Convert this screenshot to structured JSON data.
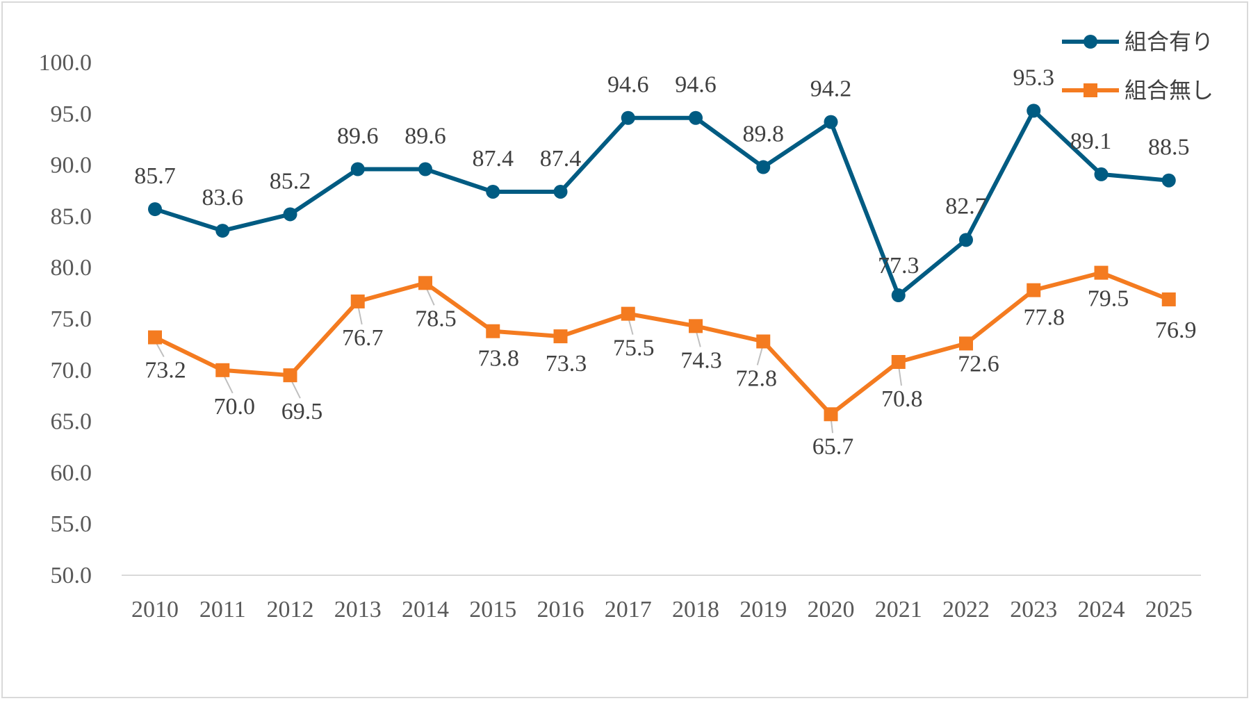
{
  "chart_data": {
    "type": "line",
    "title": "",
    "xlabel": "",
    "ylabel": "",
    "categories": [
      "2010",
      "2011",
      "2012",
      "2013",
      "2014",
      "2015",
      "2016",
      "2017",
      "2018",
      "2019",
      "2020",
      "2021",
      "2022",
      "2023",
      "2024",
      "2025"
    ],
    "ylim": [
      50,
      100
    ],
    "yticks": [
      "50.0",
      "55.0",
      "60.0",
      "65.0",
      "70.0",
      "75.0",
      "80.0",
      "85.0",
      "90.0",
      "95.0",
      "100.0"
    ],
    "grid": false,
    "legend_position": "top-right",
    "series": [
      {
        "name": "組合有り",
        "color": "#005b82",
        "marker": "circle",
        "label_position": "above",
        "values": [
          85.7,
          83.6,
          85.2,
          89.6,
          89.6,
          87.4,
          87.4,
          94.6,
          94.6,
          89.8,
          94.2,
          77.3,
          82.7,
          95.3,
          89.1,
          88.5
        ],
        "labels": [
          "85.7",
          "83.6",
          "85.2",
          "89.6",
          "89.6",
          "87.4",
          "87.4",
          "94.6",
          "94.6",
          "89.8",
          "94.2",
          "77.3",
          "82.7",
          "95.3",
          "89.1",
          "88.5"
        ]
      },
      {
        "name": "組合無し",
        "color": "#f47b20",
        "marker": "square",
        "label_position": "below",
        "values": [
          73.2,
          70.0,
          69.5,
          76.7,
          78.5,
          73.8,
          73.3,
          75.5,
          74.3,
          72.8,
          65.7,
          70.8,
          72.6,
          77.8,
          79.5,
          76.9
        ],
        "labels": [
          "73.2",
          "70.0",
          "69.5",
          "76.7",
          "78.5",
          "73.8",
          "73.3",
          "75.5",
          "74.3",
          "72.8",
          "65.7",
          "70.8",
          "72.6",
          "77.8",
          "79.5",
          "76.9"
        ]
      }
    ]
  }
}
